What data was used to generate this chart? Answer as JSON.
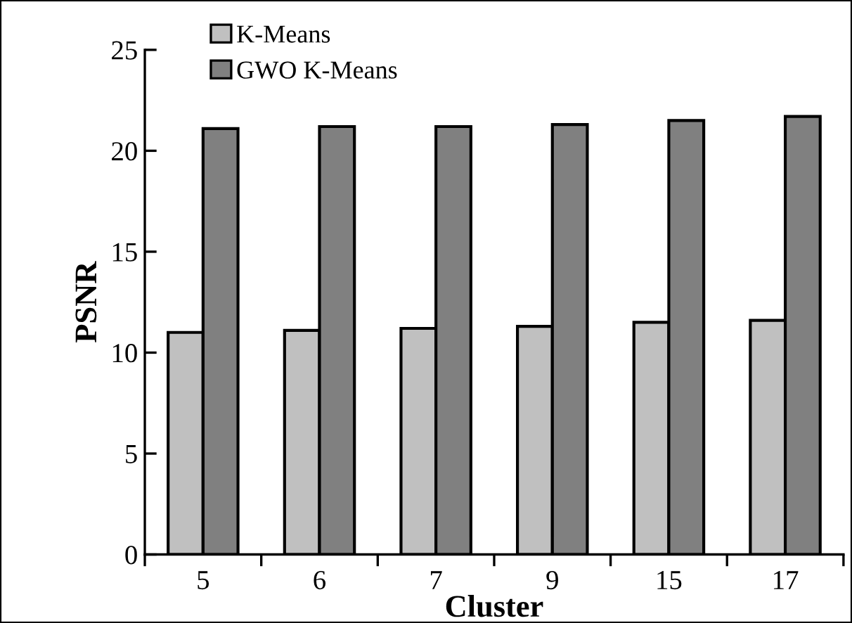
{
  "chart_data": {
    "type": "bar",
    "xlabel": "Cluster",
    "ylabel": "PSNR",
    "categories": [
      "5",
      "6",
      "7",
      "9",
      "15",
      "17"
    ],
    "series": [
      {
        "name": "K-Means",
        "color": "#c0c0c0",
        "values": [
          11.0,
          11.1,
          11.2,
          11.3,
          11.5,
          11.6
        ]
      },
      {
        "name": "GWO K-Means",
        "color": "#808080",
        "values": [
          21.1,
          21.2,
          21.2,
          21.3,
          21.5,
          21.7
        ]
      }
    ],
    "ylim": [
      0,
      25
    ],
    "yticks": [
      0,
      5,
      10,
      15,
      20,
      25
    ],
    "grid": false,
    "legend": "top left"
  }
}
